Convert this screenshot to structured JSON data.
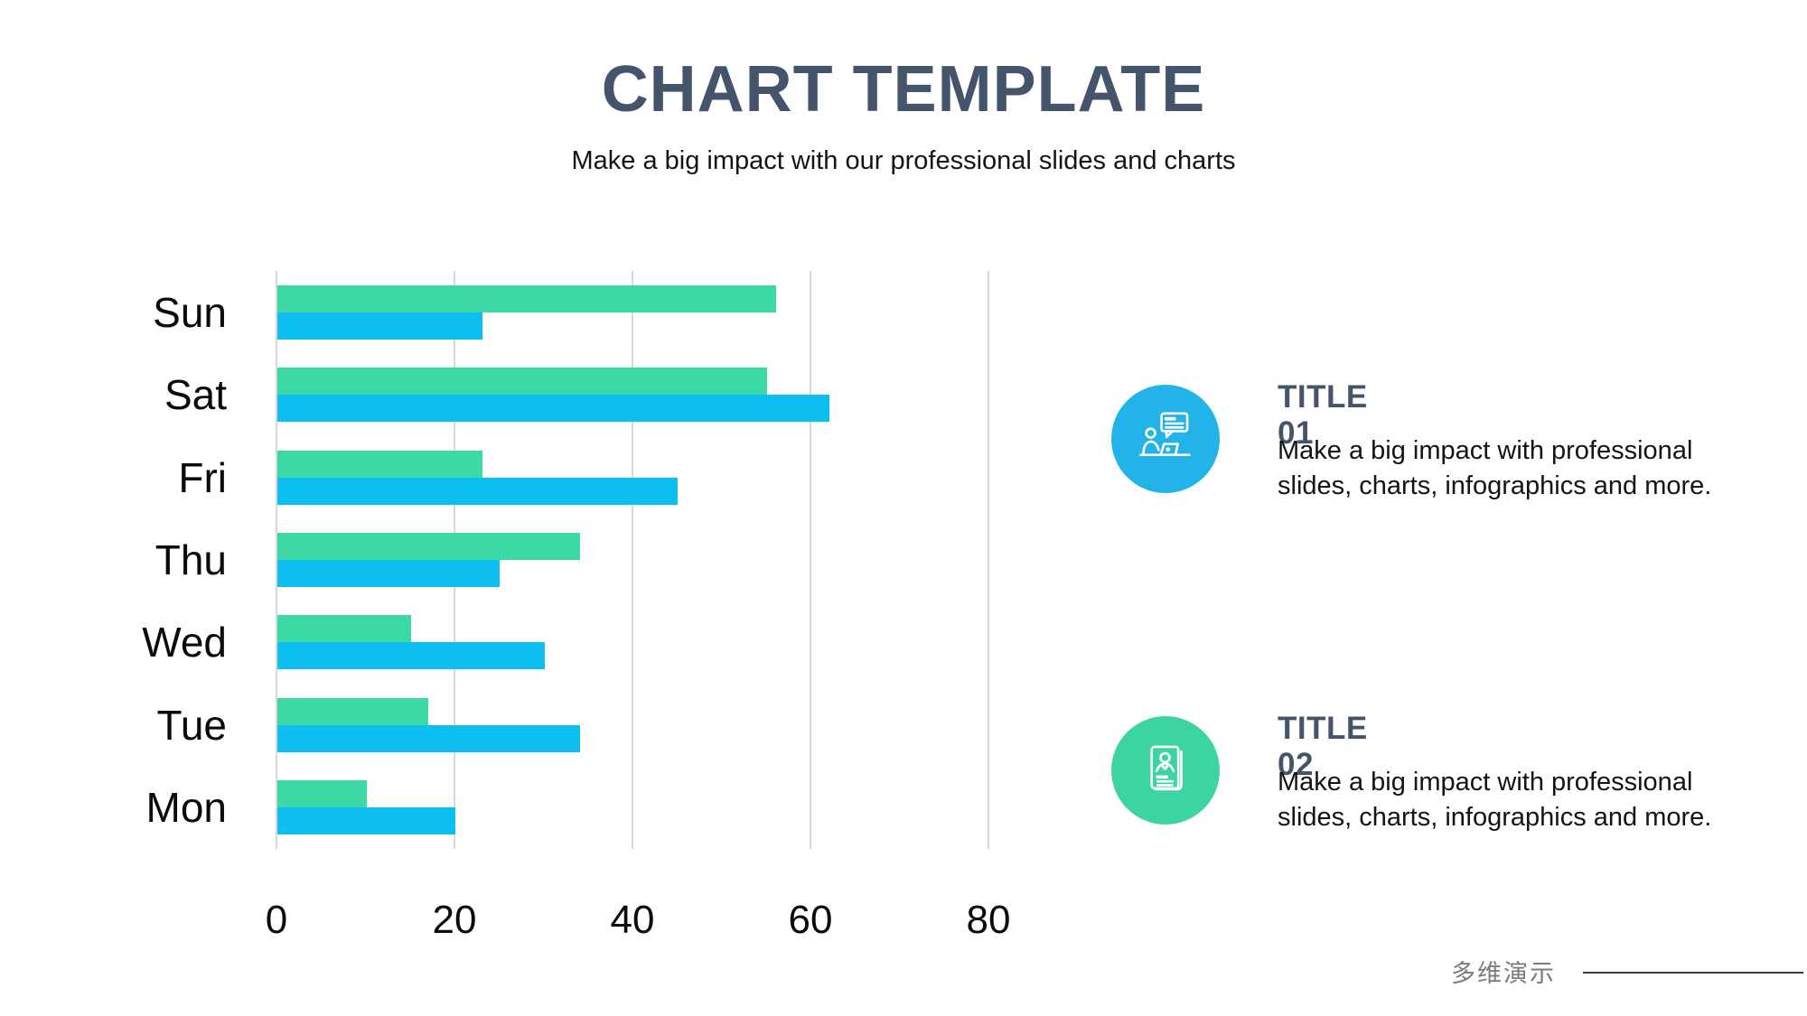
{
  "slide": {
    "title": "CHART TEMPLATE",
    "subtitle": "Make a big impact with our professional slides and charts"
  },
  "chart_data": {
    "type": "bar",
    "orientation": "horizontal",
    "title": "",
    "xlabel": "",
    "ylabel": "",
    "categories": [
      "Sun",
      "Sat",
      "Fri",
      "Thu",
      "Wed",
      "Tue",
      "Mon"
    ],
    "series": [
      {
        "name": "green-series",
        "color": "#3cd9a7",
        "values": [
          56,
          55,
          23,
          34,
          15,
          17,
          10
        ]
      },
      {
        "name": "blue-series",
        "color": "#0dbef0",
        "values": [
          23,
          62,
          45,
          25,
          30,
          34,
          20
        ]
      }
    ],
    "x_ticks": [
      0,
      20,
      40,
      60,
      80
    ],
    "xlim": [
      0,
      80
    ],
    "grid": "vertical-only",
    "gridline_color": "#d8d8d8",
    "legend": "none"
  },
  "info_panels": [
    {
      "title": "TITLE 01",
      "body": "Make a big impact with professional slides, charts, infographics and more.",
      "icon": "person-chat-laptop-icon",
      "circle_color": "#22b4e9"
    },
    {
      "title": "TITLE 02",
      "body": "Make a big impact with professional slides, charts, infographics and more.",
      "icon": "resume-card-icon",
      "circle_color": "#3dd4a4"
    }
  ],
  "footer": {
    "brand_text": "多维演示"
  },
  "colors": {
    "heading": "#44546a",
    "bar_green": "#3cd9a7",
    "bar_blue": "#0dbef0",
    "gridline": "#d8d8d8",
    "footer_text": "#7b7b7b",
    "footer_line": "#3c3c3c"
  }
}
